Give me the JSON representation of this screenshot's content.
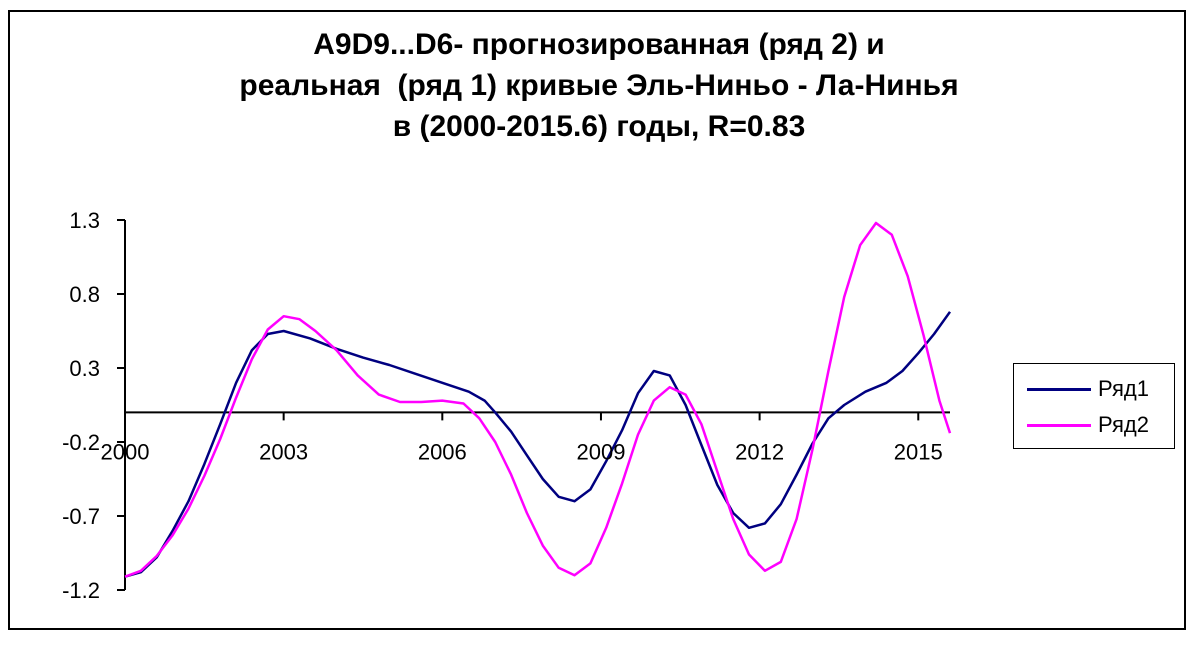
{
  "chart_data": {
    "type": "line",
    "title_lines": [
      "A9D9...D6- прогнозированная (ряд 2) и",
      "реальная  (ряд 1) кривые Эль-Ниньо - Ла-Нинья",
      "в (2000-2015.6) годы, R=0.83"
    ],
    "xlabel": "",
    "ylabel": "",
    "xlim": [
      2000,
      2015.6
    ],
    "ylim": [
      -1.2,
      1.3
    ],
    "x_ticks": [
      2000,
      2003,
      2006,
      2009,
      2012,
      2015
    ],
    "x_tick_labels": [
      "2000",
      "2003",
      "2006",
      "2009",
      "2012",
      "2015"
    ],
    "y_ticks": [
      1.3,
      0.8,
      0.3,
      -0.2,
      -0.7,
      -1.2
    ],
    "y_tick_labels": [
      "1.3",
      "0.8",
      "0.3",
      "-0.2",
      "-0.7",
      "-1.2"
    ],
    "x_axis_crosses_y": 0,
    "grid": false,
    "legend_position": "right",
    "series": [
      {
        "name": "Ряд1",
        "color": "#000080",
        "points": [
          [
            2000.0,
            -1.11
          ],
          [
            2000.3,
            -1.08
          ],
          [
            2000.6,
            -0.98
          ],
          [
            2000.9,
            -0.8
          ],
          [
            2001.2,
            -0.6
          ],
          [
            2001.5,
            -0.35
          ],
          [
            2001.8,
            -0.08
          ],
          [
            2002.1,
            0.2
          ],
          [
            2002.4,
            0.42
          ],
          [
            2002.7,
            0.53
          ],
          [
            2003.0,
            0.55
          ],
          [
            2003.5,
            0.5
          ],
          [
            2004.0,
            0.43
          ],
          [
            2004.5,
            0.37
          ],
          [
            2005.0,
            0.32
          ],
          [
            2005.5,
            0.26
          ],
          [
            2006.0,
            0.2
          ],
          [
            2006.5,
            0.14
          ],
          [
            2006.8,
            0.08
          ],
          [
            2007.0,
            0.0
          ],
          [
            2007.3,
            -0.13
          ],
          [
            2007.6,
            -0.29
          ],
          [
            2007.9,
            -0.45
          ],
          [
            2008.2,
            -0.57
          ],
          [
            2008.5,
            -0.6
          ],
          [
            2008.8,
            -0.52
          ],
          [
            2009.1,
            -0.33
          ],
          [
            2009.4,
            -0.12
          ],
          [
            2009.7,
            0.13
          ],
          [
            2010.0,
            0.28
          ],
          [
            2010.3,
            0.25
          ],
          [
            2010.6,
            0.05
          ],
          [
            2010.9,
            -0.22
          ],
          [
            2011.2,
            -0.49
          ],
          [
            2011.5,
            -0.68
          ],
          [
            2011.8,
            -0.78
          ],
          [
            2012.1,
            -0.75
          ],
          [
            2012.4,
            -0.62
          ],
          [
            2012.7,
            -0.42
          ],
          [
            2013.0,
            -0.21
          ],
          [
            2013.3,
            -0.04
          ],
          [
            2013.6,
            0.05
          ],
          [
            2014.0,
            0.14
          ],
          [
            2014.4,
            0.2
          ],
          [
            2014.7,
            0.28
          ],
          [
            2015.0,
            0.4
          ],
          [
            2015.3,
            0.53
          ],
          [
            2015.6,
            0.68
          ]
        ]
      },
      {
        "name": "Ряд2",
        "color": "#ff00ff",
        "points": [
          [
            2000.0,
            -1.11
          ],
          [
            2000.3,
            -1.07
          ],
          [
            2000.6,
            -0.97
          ],
          [
            2000.9,
            -0.83
          ],
          [
            2001.2,
            -0.65
          ],
          [
            2001.5,
            -0.43
          ],
          [
            2001.8,
            -0.18
          ],
          [
            2002.1,
            0.1
          ],
          [
            2002.4,
            0.36
          ],
          [
            2002.7,
            0.56
          ],
          [
            2003.0,
            0.65
          ],
          [
            2003.3,
            0.63
          ],
          [
            2003.6,
            0.55
          ],
          [
            2004.0,
            0.42
          ],
          [
            2004.4,
            0.25
          ],
          [
            2004.8,
            0.12
          ],
          [
            2005.2,
            0.07
          ],
          [
            2005.6,
            0.07
          ],
          [
            2006.0,
            0.08
          ],
          [
            2006.4,
            0.06
          ],
          [
            2006.7,
            -0.04
          ],
          [
            2007.0,
            -0.2
          ],
          [
            2007.3,
            -0.42
          ],
          [
            2007.6,
            -0.68
          ],
          [
            2007.9,
            -0.9
          ],
          [
            2008.2,
            -1.05
          ],
          [
            2008.5,
            -1.1
          ],
          [
            2008.8,
            -1.02
          ],
          [
            2009.1,
            -0.78
          ],
          [
            2009.4,
            -0.48
          ],
          [
            2009.7,
            -0.15
          ],
          [
            2010.0,
            0.08
          ],
          [
            2010.3,
            0.17
          ],
          [
            2010.6,
            0.12
          ],
          [
            2010.9,
            -0.08
          ],
          [
            2011.2,
            -0.4
          ],
          [
            2011.5,
            -0.72
          ],
          [
            2011.8,
            -0.96
          ],
          [
            2012.1,
            -1.07
          ],
          [
            2012.4,
            -1.01
          ],
          [
            2012.7,
            -0.72
          ],
          [
            2013.0,
            -0.25
          ],
          [
            2013.3,
            0.28
          ],
          [
            2013.6,
            0.78
          ],
          [
            2013.9,
            1.13
          ],
          [
            2014.2,
            1.28
          ],
          [
            2014.5,
            1.2
          ],
          [
            2014.8,
            0.92
          ],
          [
            2015.1,
            0.52
          ],
          [
            2015.4,
            0.08
          ],
          [
            2015.6,
            -0.14
          ]
        ]
      }
    ]
  }
}
